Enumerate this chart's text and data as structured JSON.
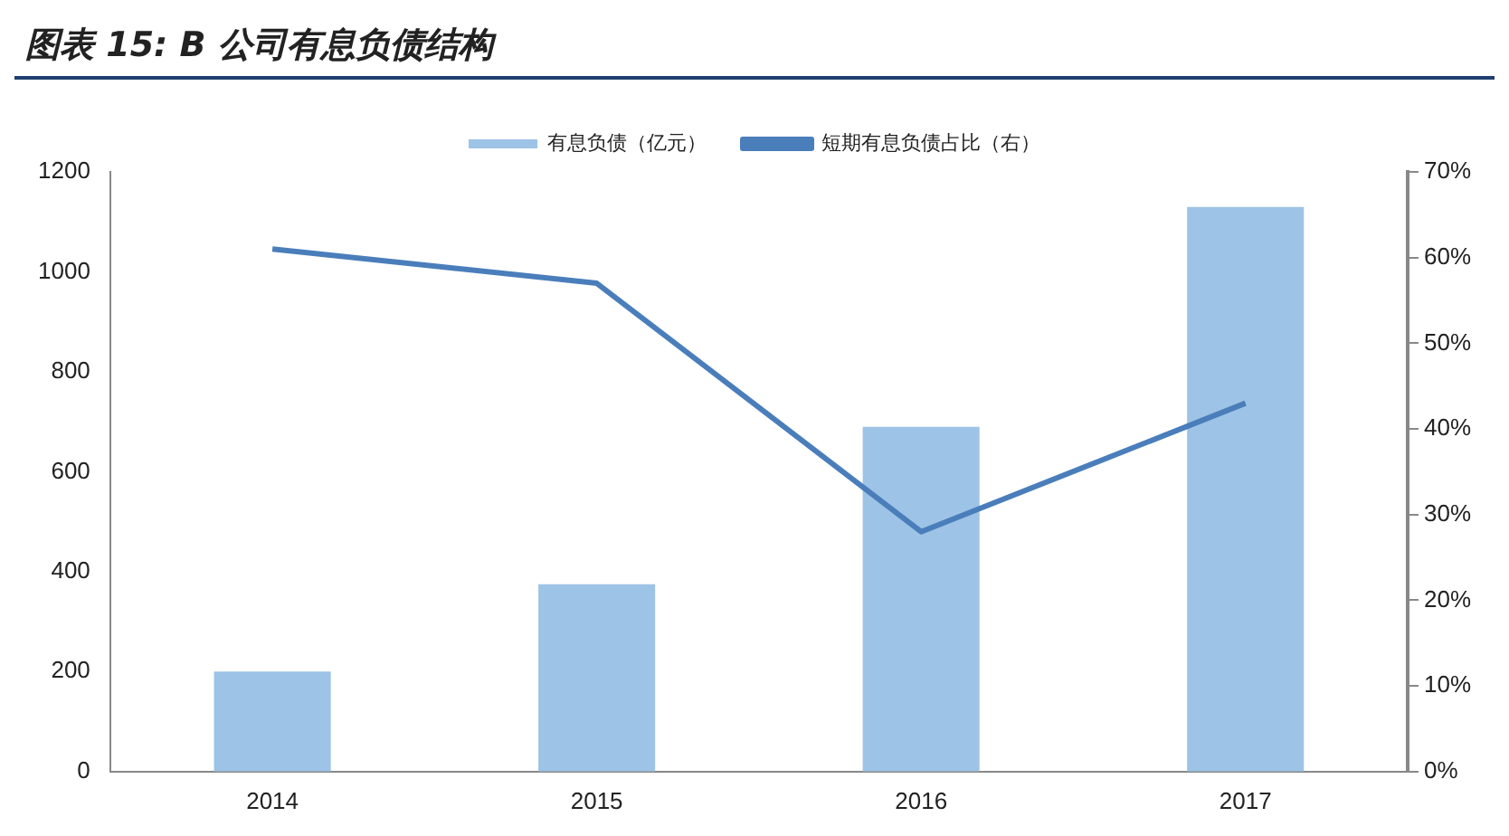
{
  "chart_data": {
    "type": "bar",
    "title": "图表 15:  B 公司有息负债结构",
    "categories": [
      "2014",
      "2015",
      "2016",
      "2017"
    ],
    "series": [
      {
        "name": "有息负债（亿元）",
        "color": "#9dc3e6",
        "values": [
          200,
          375,
          690,
          1130
        ]
      },
      {
        "name": "短期有息负债占比（右）",
        "type": "line",
        "axis": "y2",
        "color": "#4a7ebb",
        "values": [
          61,
          57,
          28,
          43
        ]
      }
    ],
    "ylim": [
      0,
      1200
    ],
    "yticks": [
      0,
      200,
      400,
      600,
      800,
      1000,
      1200
    ],
    "y2lim": [
      0,
      70
    ],
    "y2ticks": [
      {
        "value": 0,
        "label": "0%"
      },
      {
        "value": 10,
        "label": "10%"
      },
      {
        "value": 20,
        "label": "20%"
      },
      {
        "value": 30,
        "label": "30%"
      },
      {
        "value": 40,
        "label": "40%"
      },
      {
        "value": 50,
        "label": "50%"
      },
      {
        "value": 60,
        "label": "60%"
      },
      {
        "value": 70,
        "label": "70%"
      }
    ],
    "legend": "top",
    "grid": false,
    "marker": "none"
  }
}
